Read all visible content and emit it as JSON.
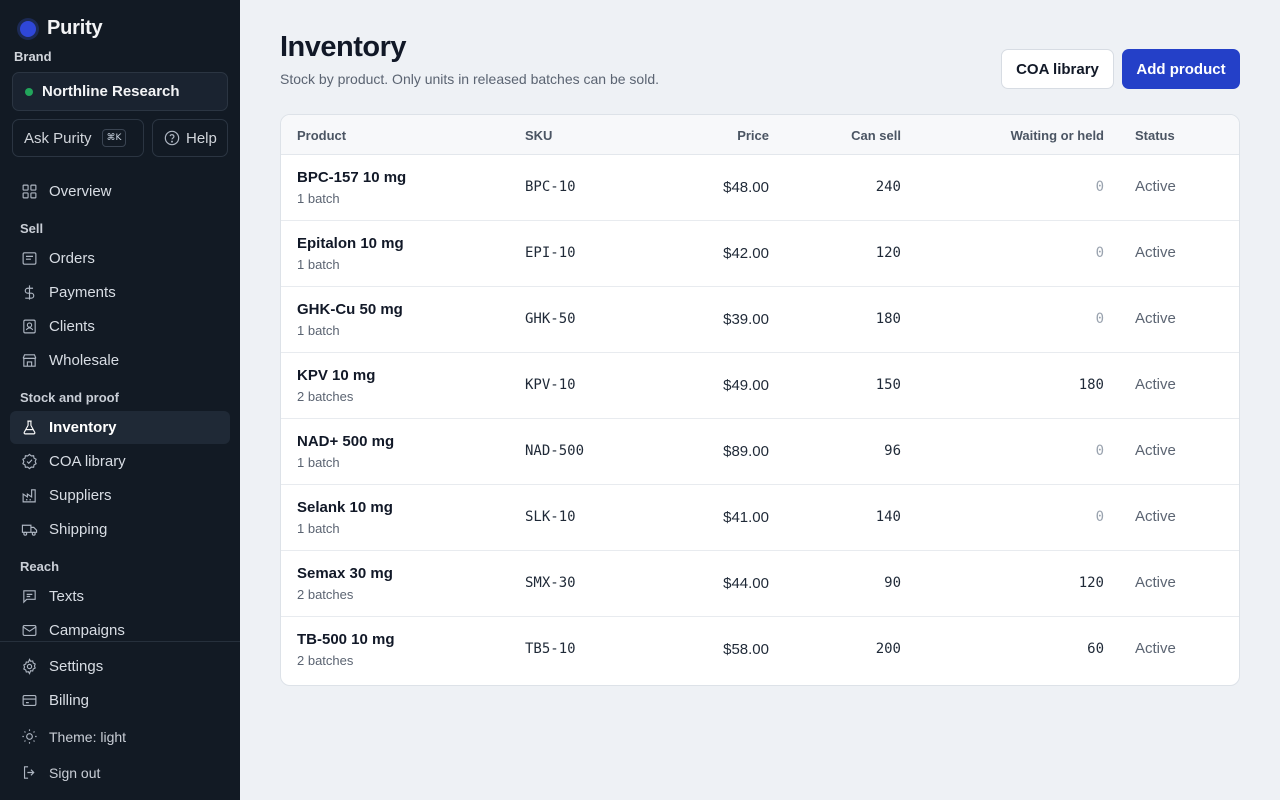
{
  "app": {
    "name": "Purity"
  },
  "sidebar": {
    "brand_label": "Brand",
    "brand_name": "Northline Research",
    "ask_label": "Ask Purity",
    "ask_shortcut": "⌘K",
    "help_label": "Help",
    "overview": "Overview",
    "sections": {
      "sell": "Sell",
      "stock": "Stock and proof",
      "reach": "Reach"
    },
    "sell_items": [
      "Orders",
      "Payments",
      "Clients",
      "Wholesale"
    ],
    "stock_items": [
      "Inventory",
      "COA library",
      "Suppliers",
      "Shipping"
    ],
    "reach_items": [
      "Texts",
      "Campaigns"
    ],
    "bottom_items": [
      "Settings",
      "Billing"
    ],
    "theme_label": "Theme: light",
    "sign_out": "Sign out"
  },
  "page": {
    "title": "Inventory",
    "subtitle": "Stock by product. Only units in released batches can be sold.",
    "coa_button": "COA library",
    "add_button": "Add product"
  },
  "table": {
    "headers": {
      "product": "Product",
      "sku": "SKU",
      "price": "Price",
      "can_sell": "Can sell",
      "waiting": "Waiting or held",
      "status": "Status"
    },
    "rows": [
      {
        "name": "BPC-157 10 mg",
        "batches": "1 batch",
        "sku": "BPC-10",
        "price": "$48.00",
        "can_sell": "240",
        "held": "0",
        "status": "Active"
      },
      {
        "name": "Epitalon 10 mg",
        "batches": "1 batch",
        "sku": "EPI-10",
        "price": "$42.00",
        "can_sell": "120",
        "held": "0",
        "status": "Active"
      },
      {
        "name": "GHK-Cu 50 mg",
        "batches": "1 batch",
        "sku": "GHK-50",
        "price": "$39.00",
        "can_sell": "180",
        "held": "0",
        "status": "Active"
      },
      {
        "name": "KPV 10 mg",
        "batches": "2 batches",
        "sku": "KPV-10",
        "price": "$49.00",
        "can_sell": "150",
        "held": "180",
        "status": "Active"
      },
      {
        "name": "NAD+ 500 mg",
        "batches": "1 batch",
        "sku": "NAD-500",
        "price": "$89.00",
        "can_sell": "96",
        "held": "0",
        "status": "Active"
      },
      {
        "name": "Selank 10 mg",
        "batches": "1 batch",
        "sku": "SLK-10",
        "price": "$41.00",
        "can_sell": "140",
        "held": "0",
        "status": "Active"
      },
      {
        "name": "Semax 30 mg",
        "batches": "2 batches",
        "sku": "SMX-30",
        "price": "$44.00",
        "can_sell": "90",
        "held": "120",
        "status": "Active"
      },
      {
        "name": "TB-500 10 mg",
        "batches": "2 batches",
        "sku": "TB5-10",
        "price": "$58.00",
        "can_sell": "200",
        "held": "60",
        "status": "Active"
      }
    ]
  }
}
